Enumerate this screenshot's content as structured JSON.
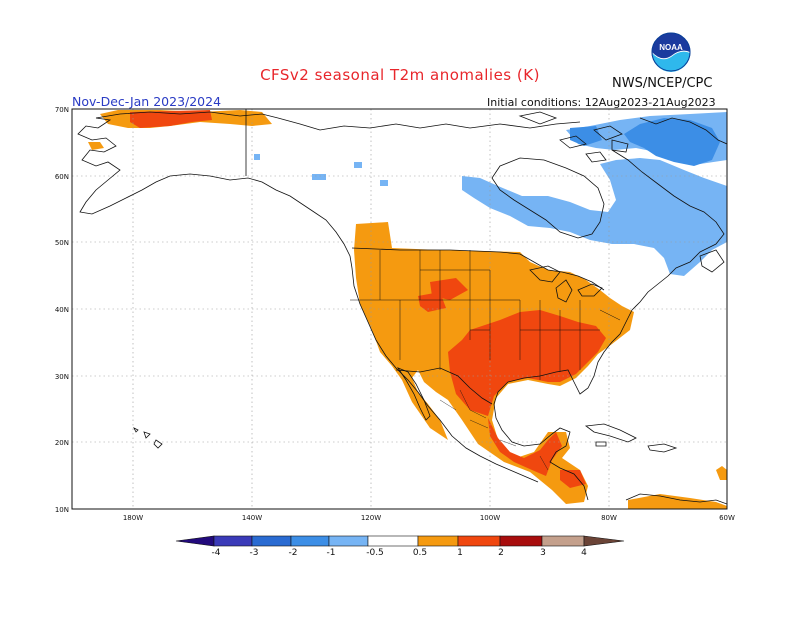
{
  "title": "CFSv2  seasonal  T2m  anomalies  (K)",
  "agency": "NWS/NCEP/CPC",
  "logo_text": "NOAA",
  "period": "Nov-Dec-Jan 2023/2024",
  "initial_conditions": "Initial conditions: 12Aug2023-21Aug2023",
  "lat_labels": [
    "70N",
    "60N",
    "50N",
    "40N",
    "30N",
    "20N",
    "10N"
  ],
  "lon_labels": [
    "180W",
    "140W",
    "120W",
    "100W",
    "80W",
    "60W"
  ],
  "colorbar_labels": [
    "-4",
    "-3",
    "-2",
    "-1",
    "-0.5",
    "0.5",
    "1",
    "2",
    "3",
    "4"
  ],
  "colors": {
    "below_m4": "#220a7c",
    "m4_m3": "#3a3ab8",
    "m3_m2": "#2a6bd2",
    "m2_m1": "#3c8ee6",
    "m1_m05": "#76b4f4",
    "neutral": "#ffffff",
    "p05_p1": "#f59a10",
    "p1_p2": "#f0470f",
    "p2_p3": "#a80d0d",
    "p3_p4": "#c4a08c",
    "above_p4": "#6b4437",
    "title": "#e8262b",
    "period": "#2a3bc4"
  }
}
